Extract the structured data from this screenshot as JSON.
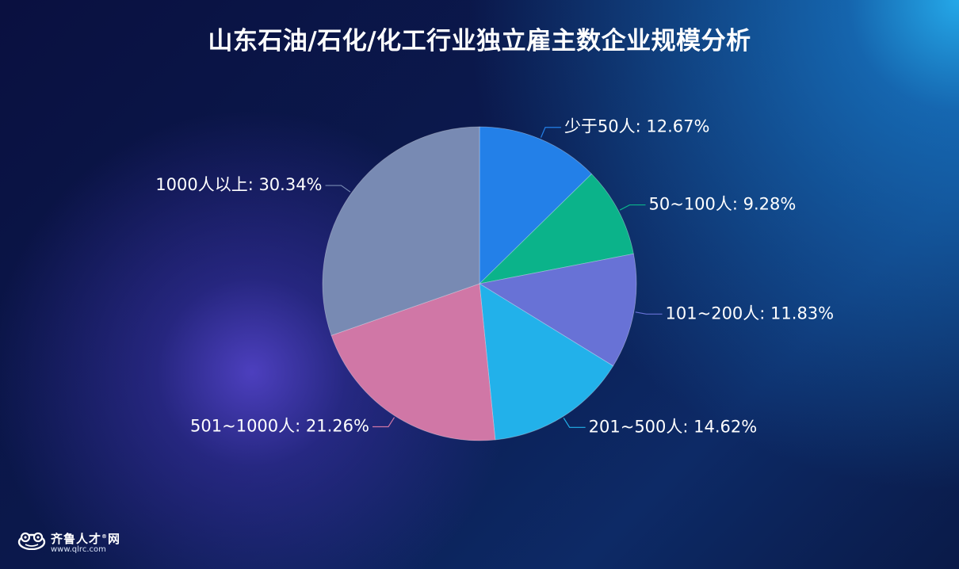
{
  "chart_data": {
    "type": "pie",
    "title": "山东石油/石化/化工行业独立雇主数企业规模分析",
    "slices": [
      {
        "label": "少于50人",
        "value": 12.67,
        "display": "少于50人: 12.67%",
        "color": "#2380e8"
      },
      {
        "label": "50~100人",
        "value": 9.28,
        "display": "50~100人: 9.28%",
        "color": "#0bb38a"
      },
      {
        "label": "101~200人",
        "value": 11.83,
        "display": "101~200人: 11.83%",
        "color": "#6872d6"
      },
      {
        "label": "201~500人",
        "value": 14.62,
        "display": "201~500人: 14.62%",
        "color": "#22b1ea"
      },
      {
        "label": "501~1000人",
        "value": 21.26,
        "display": "501~1000人: 21.26%",
        "color": "#d077a6"
      },
      {
        "label": "1000人以上",
        "value": 30.34,
        "display": "1000人以上: 30.34%",
        "color": "#788ab3"
      }
    ],
    "unit": "%",
    "legend": "none",
    "label_placement": "outside"
  },
  "branding": {
    "name": "齐鲁人才",
    "suffix": "网",
    "url": "www.qlrc.com",
    "icon": "frog-logo-icon"
  }
}
